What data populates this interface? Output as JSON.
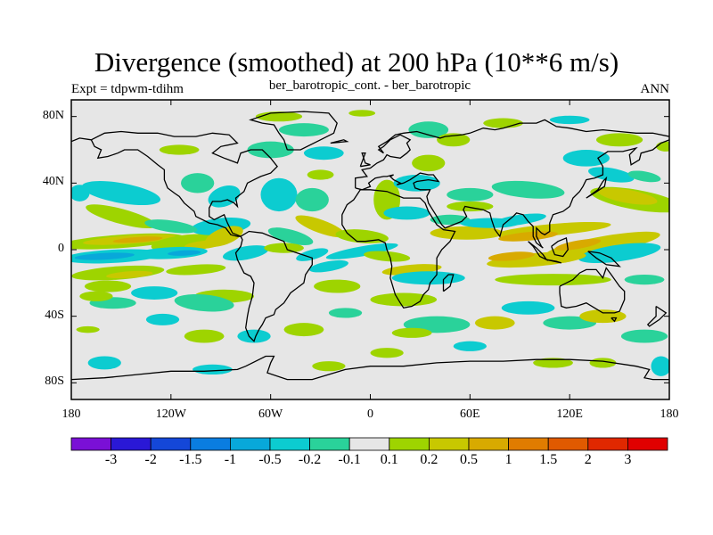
{
  "chart_data": {
    "type": "heatmap",
    "title": "Divergence (smoothed) at 200 hPa (10**6 m/s)",
    "subtitle": "ber_barotropic_cont. - ber_barotropic",
    "left_label": "Expt = tdpwm-tdihm",
    "right_label": "ANN",
    "x_ticks": [
      "180",
      "120W",
      "60W",
      "0",
      "60E",
      "120E",
      "180"
    ],
    "y_ticks": [
      "80N",
      "40N",
      "0",
      "40S",
      "80S"
    ],
    "x_range": [
      -180,
      180
    ],
    "y_range": [
      -90,
      90
    ],
    "colorbar": {
      "labels": [
        "-3",
        "-2",
        "-1.5",
        "-1",
        "-0.5",
        "-0.2",
        "-0.1",
        "0.1",
        "0.2",
        "0.5",
        "1",
        "1.5",
        "2",
        "3"
      ],
      "colors": [
        "#7a10d6",
        "#2a18d6",
        "#1447d8",
        "#0a7de0",
        "#08a8da",
        "#0cccd0",
        "#2ad29a",
        "#e6e6e6",
        "#9ed400",
        "#c8c800",
        "#d8aa00",
        "#e07c00",
        "#e05a00",
        "#e02800",
        "#e00000"
      ]
    },
    "field_colors": {
      "background": "#e6e6e6",
      "neg_weak": "#2ad29a",
      "neg_mid": "#0cccd0",
      "neg_strong": "#08a8da",
      "pos_weak": "#9ed400",
      "pos_mid": "#c8c800",
      "pos_strong": "#d8aa00"
    }
  }
}
